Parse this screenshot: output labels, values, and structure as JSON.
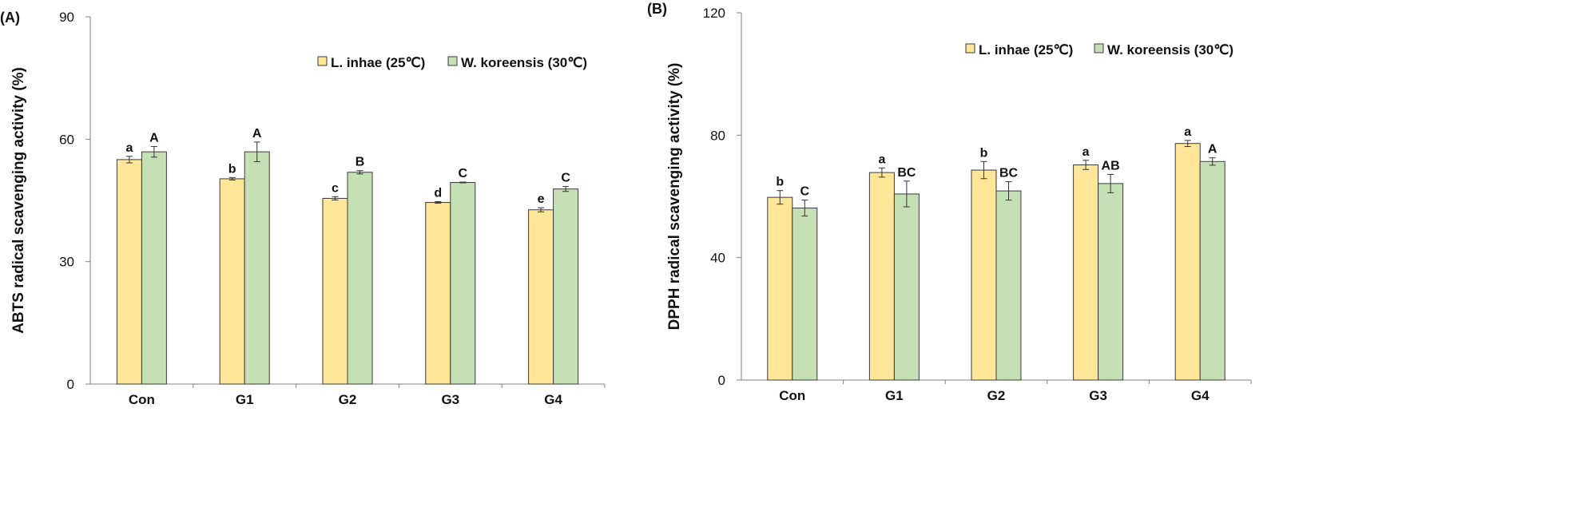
{
  "chart_data": [
    {
      "type": "bar",
      "panel_label": "(A)",
      "title": "",
      "xlabel": "",
      "ylabel": "ABTS radical scavenging activity (%)",
      "ylim": [
        0,
        90
      ],
      "yticks": [
        "0",
        "30",
        "60",
        "90"
      ],
      "categories": [
        "Con",
        "G1",
        "G2",
        "G3",
        "G4"
      ],
      "legend_position": "top-right",
      "grid": false,
      "series": [
        {
          "name": "L. inhae (25℃)",
          "color": "#FFE699",
          "values": [
            55.0,
            50.3,
            45.5,
            44.5,
            42.7
          ],
          "errors": [
            0.8,
            0.3,
            0.4,
            0.2,
            0.5
          ],
          "letters": [
            "a",
            "b",
            "c",
            "d",
            "e"
          ]
        },
        {
          "name": "W. koreensis (30℃)",
          "color": "#C5E0B4",
          "values": [
            56.9,
            56.9,
            51.9,
            49.4,
            47.8
          ],
          "errors": [
            1.3,
            2.4,
            0.4,
            0.1,
            0.6
          ],
          "letters": [
            "A",
            "A",
            "B",
            "C",
            "C"
          ]
        }
      ]
    },
    {
      "type": "bar",
      "panel_label": "(B)",
      "title": "",
      "xlabel": "",
      "ylabel": "DPPH radical scavenging activity (%)",
      "ylim": [
        0,
        120
      ],
      "yticks": [
        "0",
        "40",
        "80",
        "120"
      ],
      "categories": [
        "Con",
        "G1",
        "G2",
        "G3",
        "G4"
      ],
      "legend_position": "top-right",
      "grid": false,
      "series": [
        {
          "name": "L. inhae (25℃)",
          "color": "#FFE699",
          "values": [
            59.7,
            67.8,
            68.6,
            70.3,
            77.3
          ],
          "errors": [
            2.2,
            1.5,
            2.8,
            1.5,
            1.0
          ],
          "letters": [
            "b",
            "a",
            "b",
            "a",
            "a"
          ]
        },
        {
          "name": "W. koreensis (30℃)",
          "color": "#C5E0B4",
          "values": [
            56.2,
            60.8,
            61.8,
            64.2,
            71.4
          ],
          "errors": [
            2.6,
            4.2,
            3.0,
            3.0,
            1.2
          ],
          "letters": [
            "C",
            "BC",
            "BC",
            "AB",
            "A"
          ]
        }
      ]
    }
  ]
}
